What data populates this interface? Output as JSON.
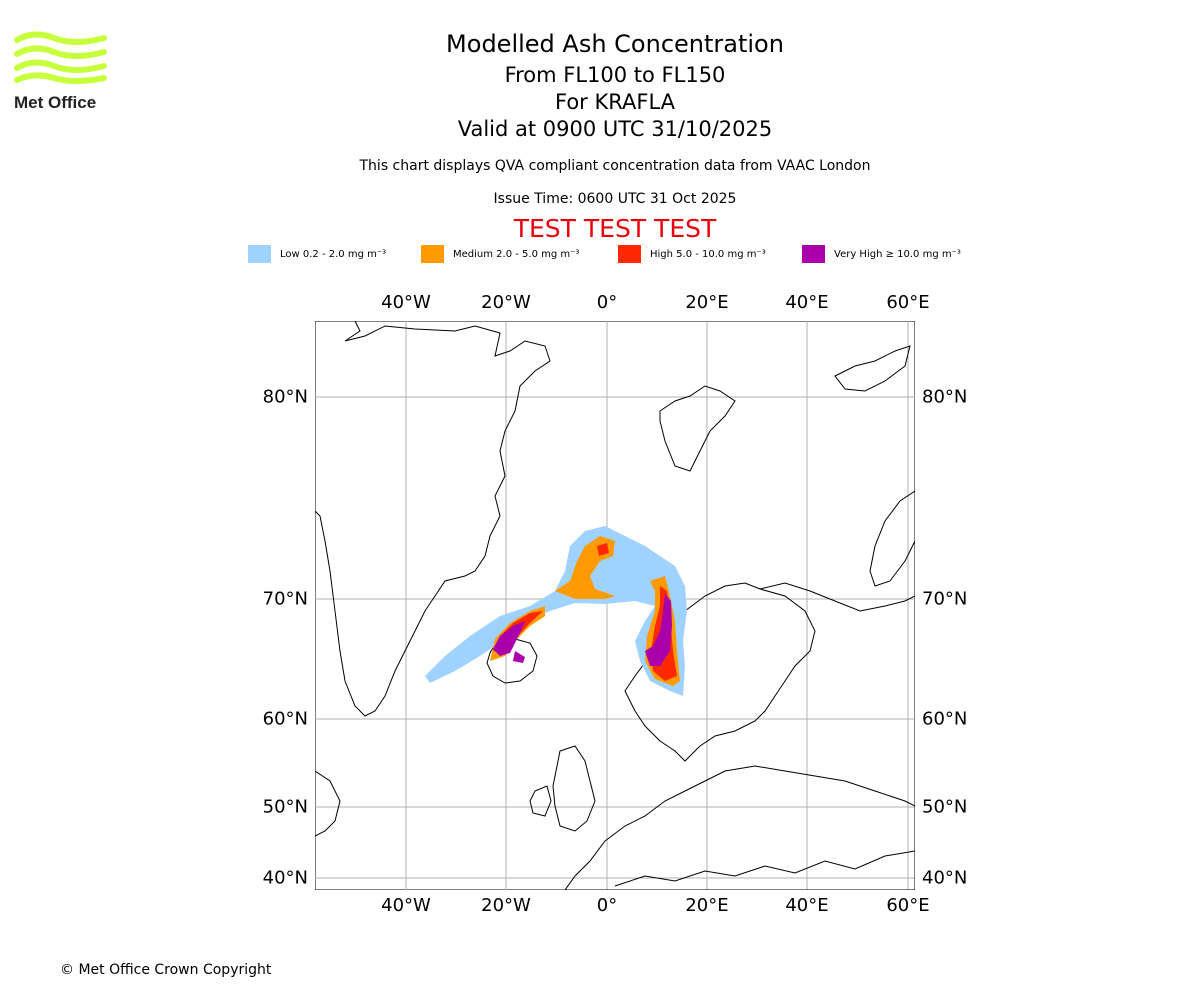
{
  "logo": {
    "text": "Met Office",
    "color": "#c8ff3c"
  },
  "title": {
    "line1": "Modelled Ash Concentration",
    "line2": "From FL100 to FL150",
    "line3": "For KRAFLA",
    "line4": "Valid at 0900 UTC 31/10/2025"
  },
  "subtitle": "This chart displays QVA compliant concentration data from VAAC London",
  "issue_time": "Issue Time: 0600 UTC 31 Oct 2025",
  "test_banner": "TEST TEST TEST",
  "legend": [
    {
      "label": "Low 0.2 - 2.0 mg m⁻³",
      "color": "#a0d2ff"
    },
    {
      "label": "Medium 2.0 - 5.0 mg m⁻³",
      "color": "#ff9b00"
    },
    {
      "label": "High 5.0 - 10.0 mg m⁻³",
      "color": "#ff2800"
    },
    {
      "label": "Very High ≥ 10.0 mg m⁻³",
      "color": "#aa00aa"
    }
  ],
  "axes": {
    "longitude_labels": [
      "40°W",
      "20°W",
      "0°",
      "20°E",
      "40°E",
      "60°E"
    ],
    "latitude_labels": [
      "80°N",
      "70°N",
      "60°N",
      "50°N",
      "40°N"
    ]
  },
  "copyright": "© Met Office Crown Copyright"
}
